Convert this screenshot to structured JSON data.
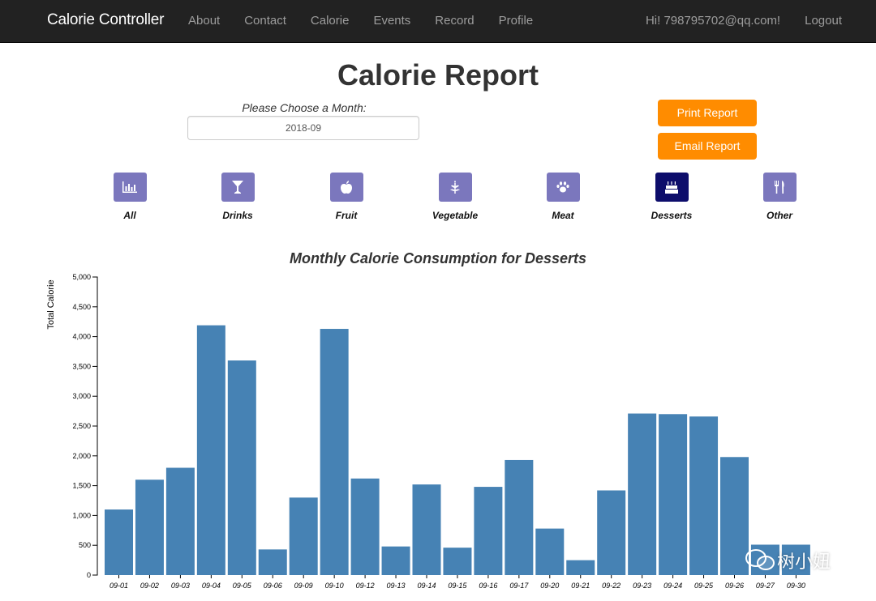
{
  "navbar": {
    "brand": "Calorie Controller",
    "links": [
      "About",
      "Contact",
      "Calorie",
      "Events",
      "Record",
      "Profile"
    ],
    "greeting": "Hi! 798795702@qq.com!",
    "logout": "Logout"
  },
  "page": {
    "title": "Calorie Report",
    "month_label": "Please Choose a Month:",
    "month_value": "2018-09",
    "print_button": "Print Report",
    "email_button": "Email Report"
  },
  "categories": [
    {
      "label": "All",
      "icon": "bar-chart-icon",
      "active": false
    },
    {
      "label": "Drinks",
      "icon": "cocktail-icon",
      "active": false
    },
    {
      "label": "Fruit",
      "icon": "apple-icon",
      "active": false
    },
    {
      "label": "Vegetable",
      "icon": "leaf-icon",
      "active": false
    },
    {
      "label": "Meat",
      "icon": "paw-icon",
      "active": false
    },
    {
      "label": "Desserts",
      "icon": "cake-icon",
      "active": true
    },
    {
      "label": "Other",
      "icon": "cutlery-icon",
      "active": false
    }
  ],
  "colors": {
    "navbar": "#222222",
    "accent_orange": "#ff8c00",
    "category_button": "#7b77bd",
    "category_active": "#0d0d6b",
    "bar": "#4682b4"
  },
  "watermark": "树小妞",
  "chart_data": {
    "type": "bar",
    "title": "Monthly Calorie Consumption for Desserts",
    "xlabel": "",
    "ylabel": "Total Calorie",
    "ylim": [
      0,
      5000
    ],
    "yticks": [
      "0",
      "500",
      "1,000",
      "1,500",
      "2,000",
      "2,500",
      "3,000",
      "3,500",
      "4,000",
      "4,500",
      "5,000"
    ],
    "categories": [
      "09-01",
      "09-02",
      "09-03",
      "09-04",
      "09-05",
      "09-06",
      "09-09",
      "09-10",
      "09-12",
      "09-13",
      "09-14",
      "09-15",
      "09-16",
      "09-17",
      "09-20",
      "09-21",
      "09-22",
      "09-23",
      "09-24",
      "09-25",
      "09-26",
      "09-27",
      "09-30"
    ],
    "values": [
      1100,
      1600,
      1800,
      4190,
      3600,
      430,
      1300,
      4130,
      1620,
      480,
      1520,
      460,
      1480,
      1930,
      780,
      250,
      1420,
      2710,
      2700,
      2660,
      1980,
      510,
      510
    ],
    "legend": "none",
    "grid": false
  }
}
